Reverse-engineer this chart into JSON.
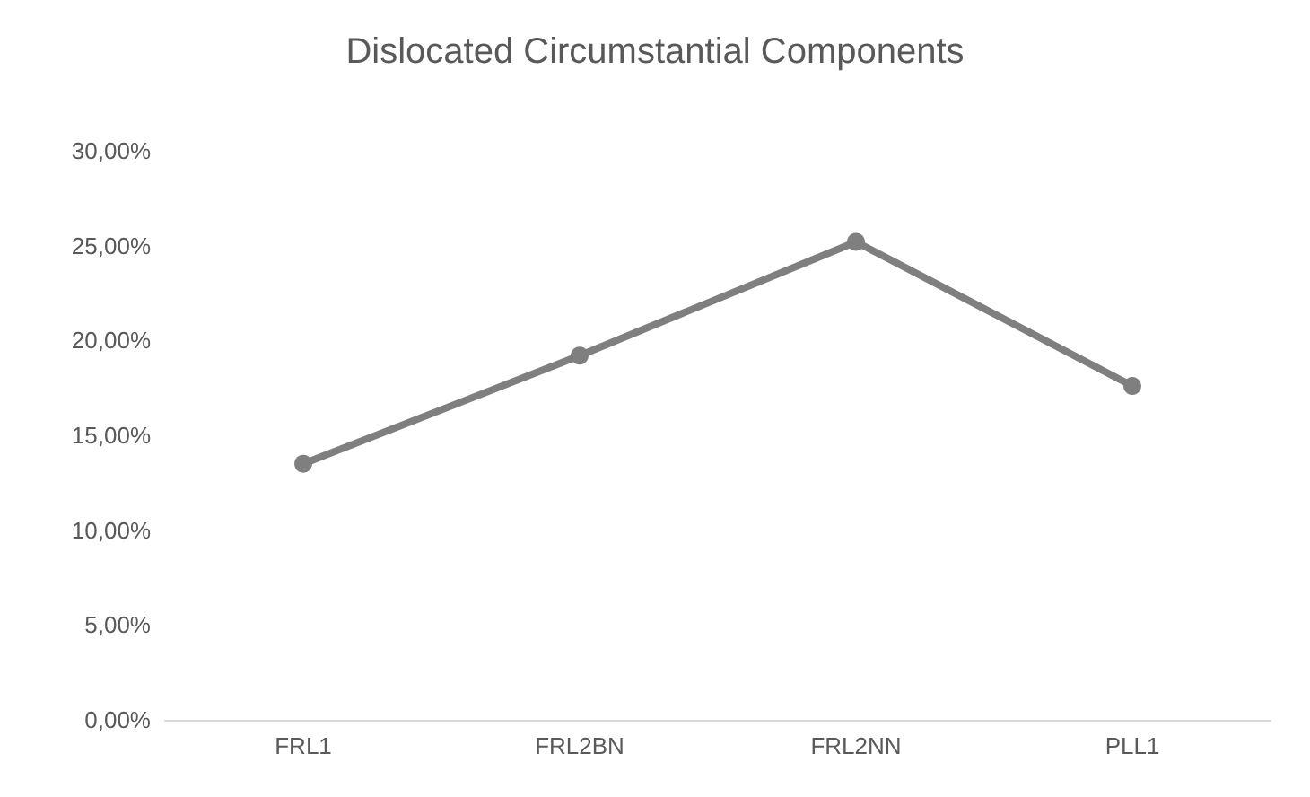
{
  "chart_data": {
    "type": "line",
    "title": "Dislocated Circumstantial Components",
    "categories": [
      "FRL1",
      "FRL2BN",
      "FRL2NN",
      "PLL1"
    ],
    "series": [
      {
        "color": "#7f7f7f",
        "values": [
          13.5,
          19.2,
          25.2,
          17.6
        ]
      }
    ],
    "ylim": [
      0,
      30
    ],
    "yticks": [
      {
        "value": 0,
        "label": "0,00%"
      },
      {
        "value": 5,
        "label": "5,00%"
      },
      {
        "value": 10,
        "label": "10,00%"
      },
      {
        "value": 15,
        "label": "15,00%"
      },
      {
        "value": 20,
        "label": "20,00%"
      },
      {
        "value": 25,
        "label": "25,00%"
      },
      {
        "value": 30,
        "label": "30,00%"
      }
    ],
    "grid": false,
    "marker": "circle",
    "line_style": "solid"
  }
}
